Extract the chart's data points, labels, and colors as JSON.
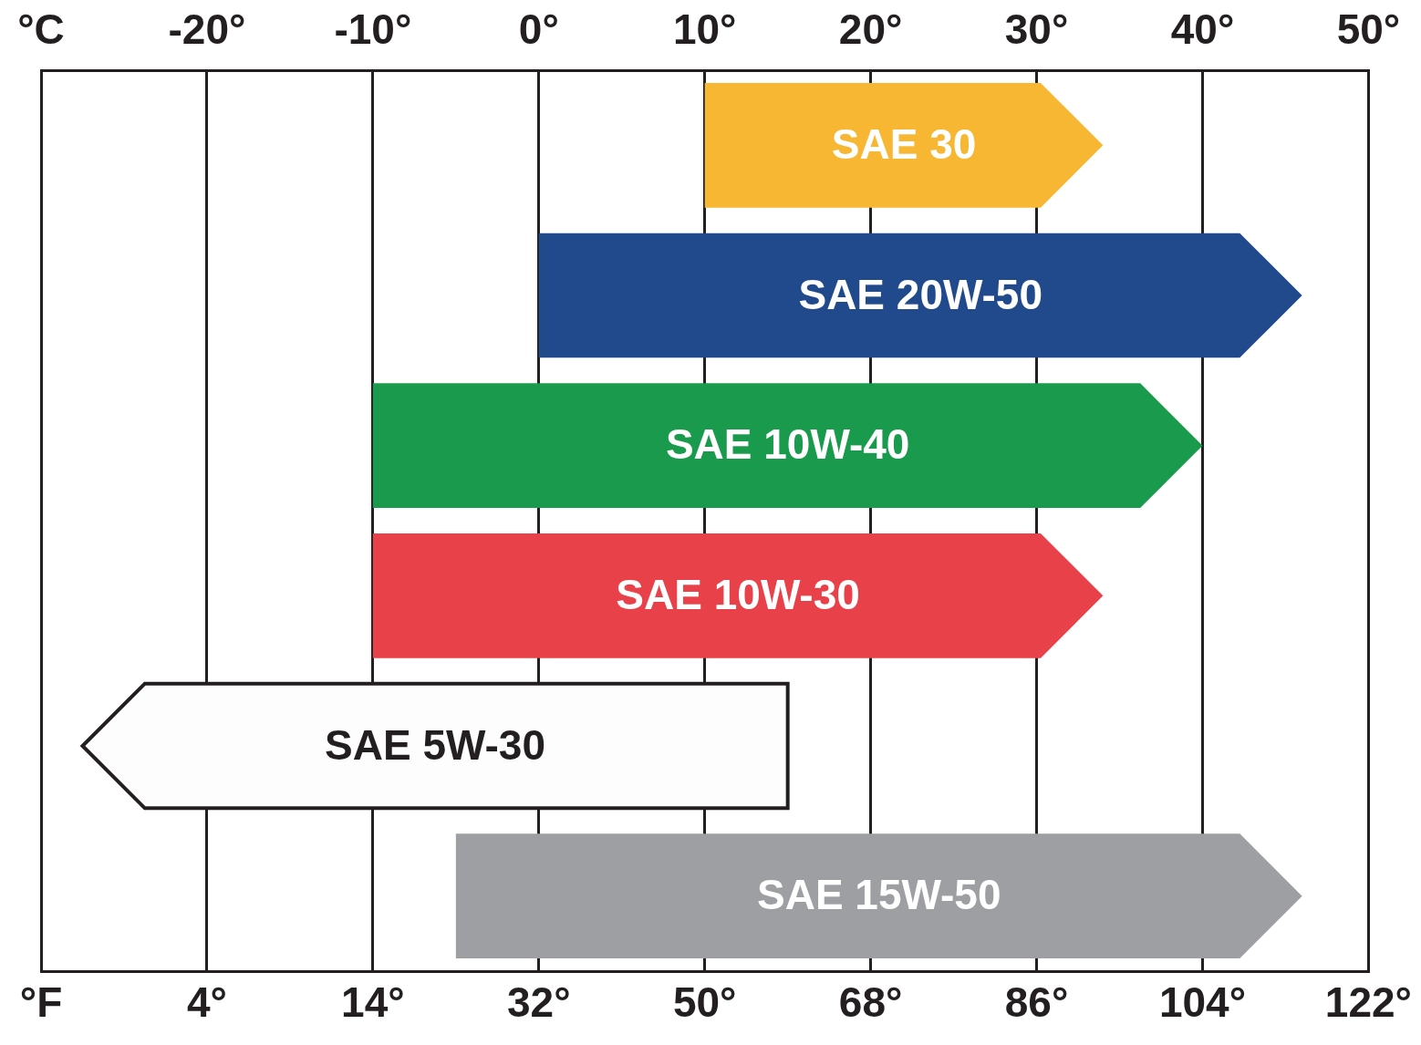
{
  "chart_data": {
    "type": "bar",
    "orientation": "horizontal",
    "categories": [
      "SAE 30",
      "SAE 20W-50",
      "SAE 10W-40",
      "SAE 10W-30",
      "SAE 5W-30",
      "SAE 15W-50"
    ],
    "series": [
      {
        "axis": "x2",
        "base": [
          10,
          0,
          -10,
          -10,
          15,
          -5
        ],
        "values": [
          24,
          46,
          50,
          44,
          -42.5,
          51
        ],
        "colors": [
          "#f8b733",
          "#214a8c",
          "#1a9a4c",
          "#e9414a",
          "#fdfdfd",
          "#9e9fa2"
        ]
      }
    ],
    "xlim": [
      -22,
      122
    ],
    "xticks": [
      {
        "value": -22,
        "label": "°F"
      },
      {
        "value": -4,
        "label": "4°"
      },
      {
        "value": 14,
        "label": "14°"
      },
      {
        "value": 32,
        "label": "32°"
      },
      {
        "value": 50,
        "label": "50°"
      },
      {
        "value": 68,
        "label": "68°"
      },
      {
        "value": 86,
        "label": "86°"
      },
      {
        "value": 104,
        "label": "104°"
      },
      {
        "value": 122,
        "label": "122°"
      }
    ],
    "x2lim": [
      -30,
      50
    ],
    "x2ticks": [
      {
        "value": -30,
        "label": "°C"
      },
      {
        "value": -20,
        "label": "-20°"
      },
      {
        "value": -10,
        "label": "-10°"
      },
      {
        "value": 0,
        "label": "0°"
      },
      {
        "value": 10,
        "label": "10°"
      },
      {
        "value": 20,
        "label": "20°"
      },
      {
        "value": 30,
        "label": "30°"
      },
      {
        "value": 40,
        "label": "40°"
      },
      {
        "value": 50,
        "label": "50°"
      }
    ],
    "grid": "x"
  }
}
